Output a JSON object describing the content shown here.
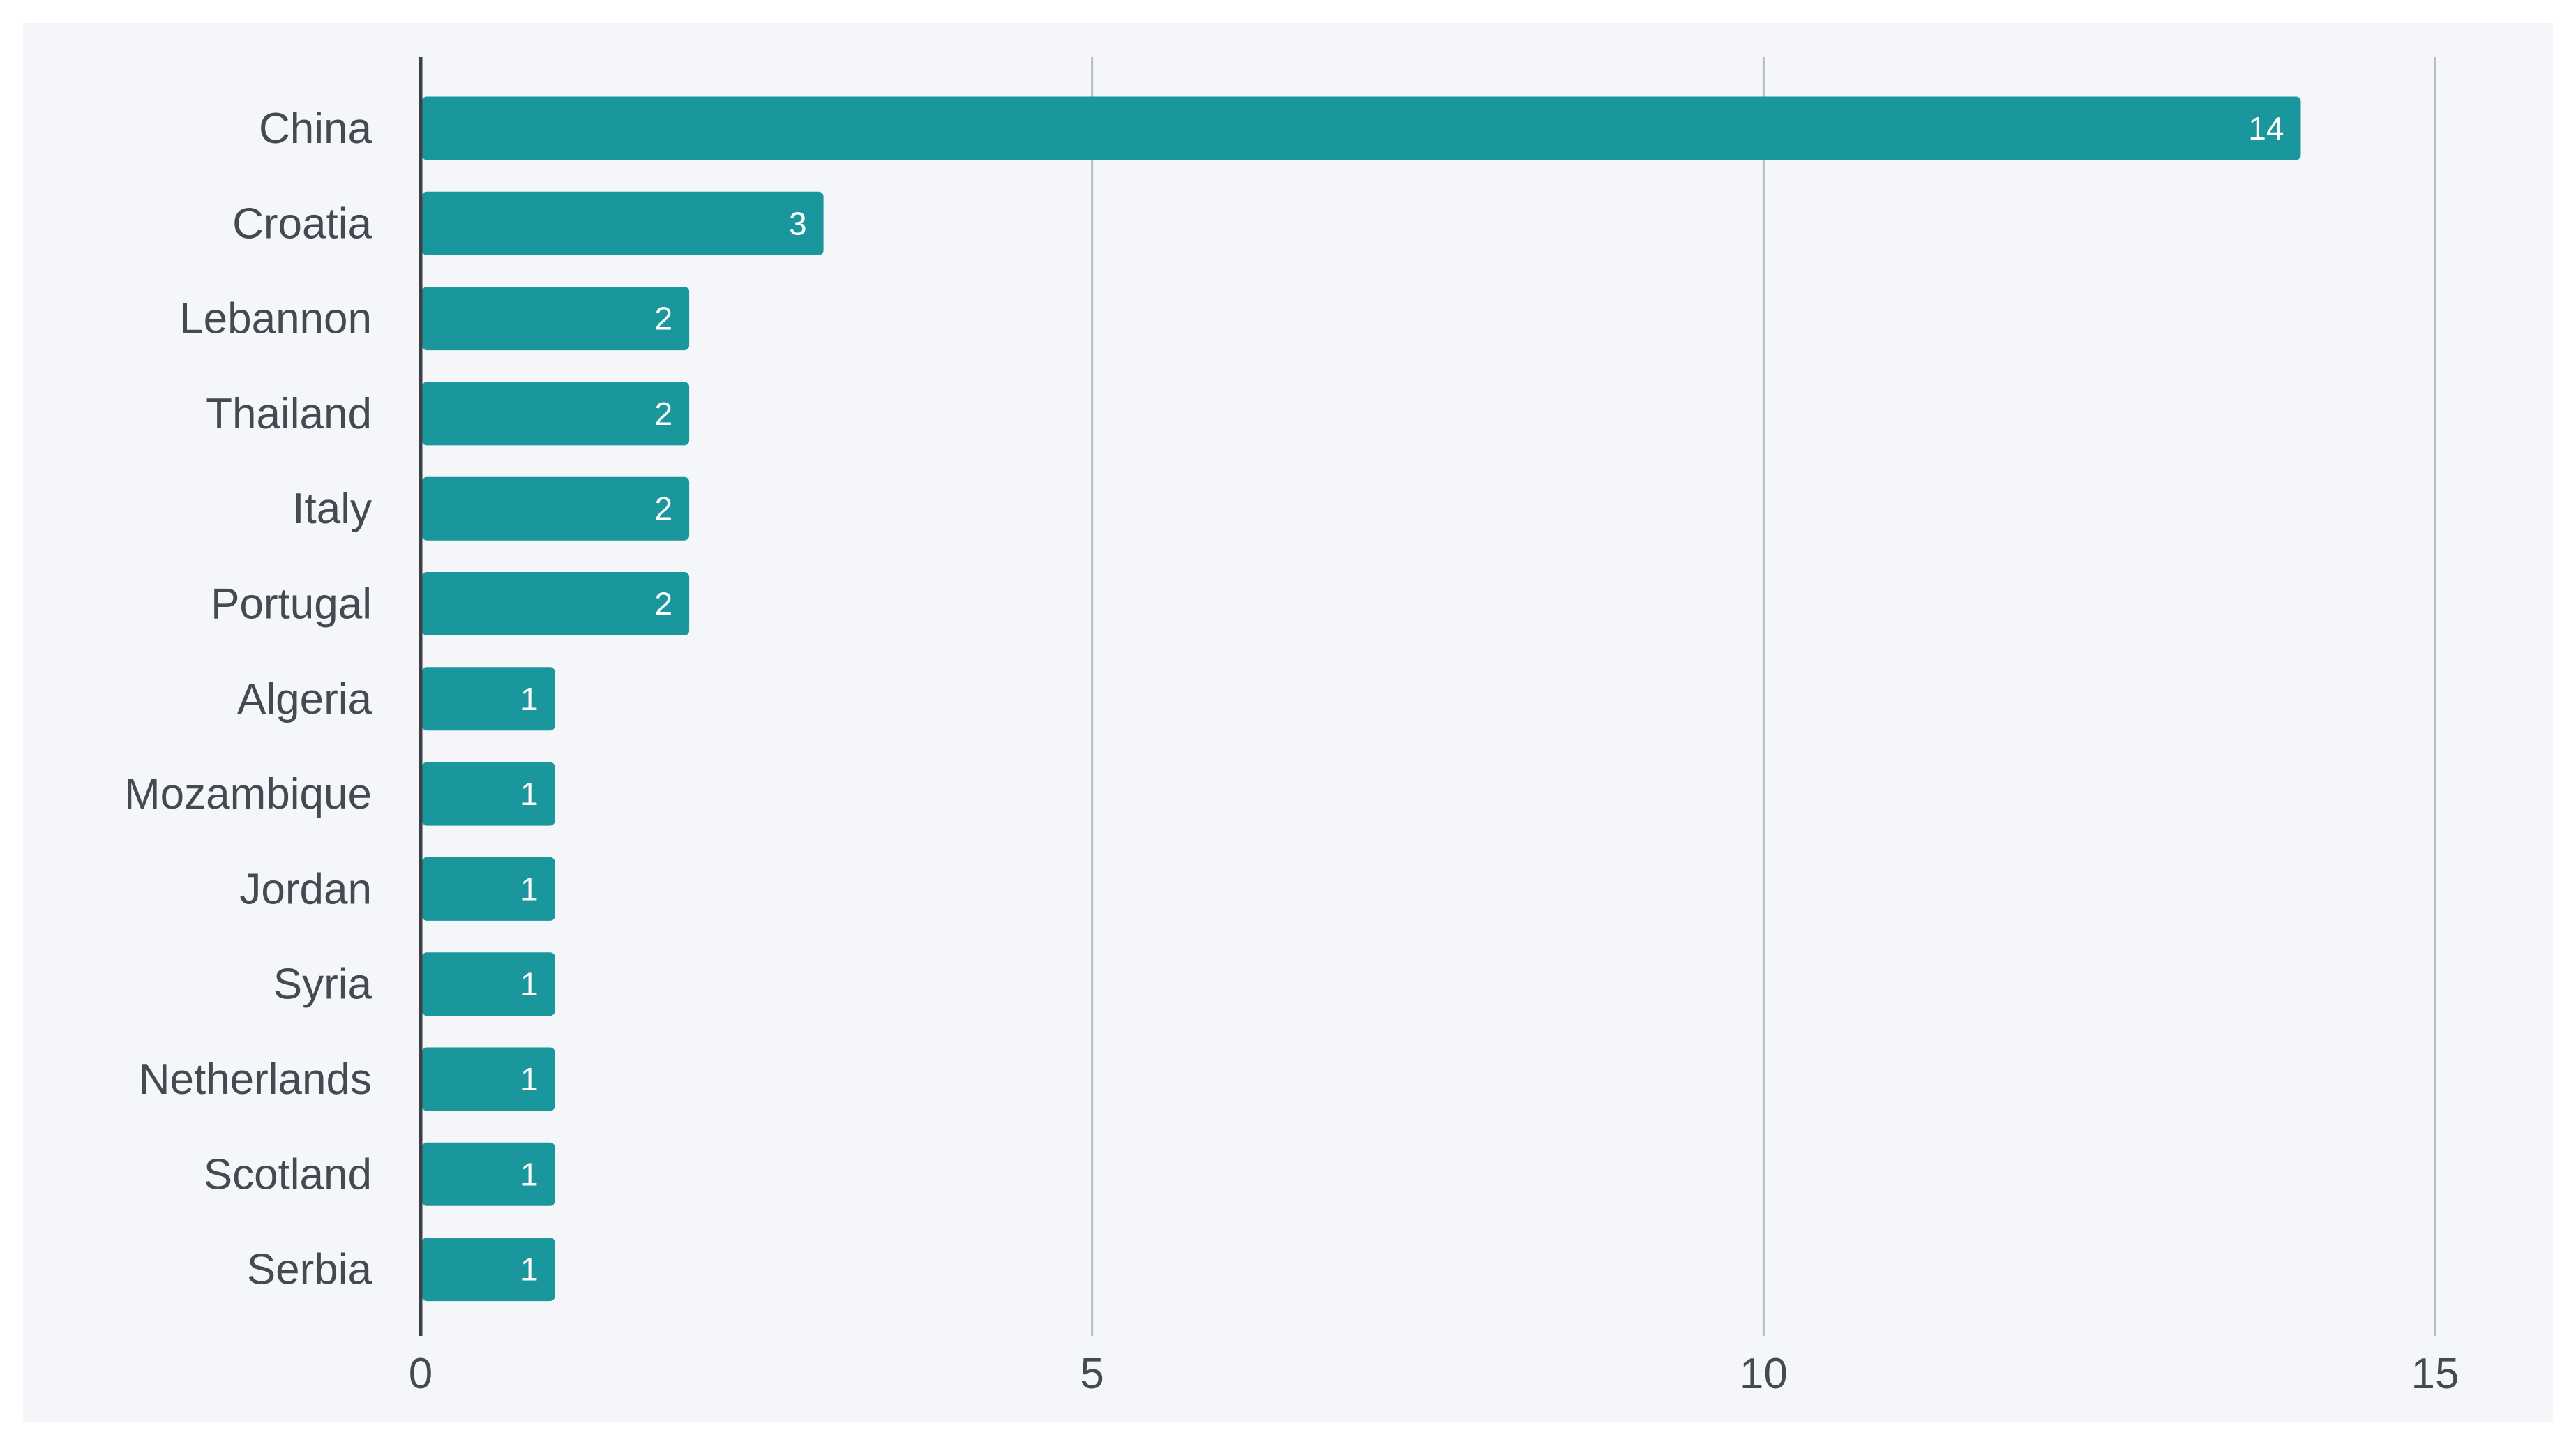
{
  "chart_data": {
    "type": "bar",
    "orientation": "horizontal",
    "title": "",
    "xlabel": "",
    "ylabel": "",
    "categories": [
      "China",
      "Croatia",
      "Lebannon",
      "Thailand",
      "Italy",
      "Portugal",
      "Algeria",
      "Mozambique",
      "Jordan",
      "Syria",
      "Netherlands",
      "Scotland",
      "Serbia"
    ],
    "values": [
      14,
      3,
      2,
      2,
      2,
      2,
      1,
      1,
      1,
      1,
      1,
      1,
      1
    ],
    "xlim": [
      0,
      15
    ],
    "xticks": [
      "0",
      "5",
      "10",
      "15"
    ],
    "grid": "vertical",
    "legend": "none",
    "data_labels": "inside-end",
    "colors": {
      "bar": "#1a979d",
      "background": "#f4f6f9",
      "gridline": "#b9bdc2",
      "text": "#444a52",
      "value_text": "#ffffff"
    }
  }
}
